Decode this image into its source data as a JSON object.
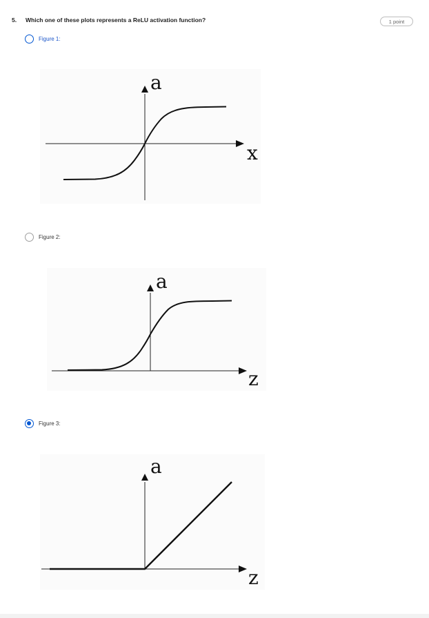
{
  "question": {
    "number": "5.",
    "text": "Which one of these plots represents a ReLU activation function?",
    "points": "1 point"
  },
  "options": [
    {
      "label": "Figure 1:",
      "selected": false,
      "figure": {
        "y_label": "a",
        "x_label": "x",
        "curve": "tanh"
      }
    },
    {
      "label": "Figure 2:",
      "selected": false,
      "figure": {
        "y_label": "a",
        "x_label": "z",
        "curve": "sigmoid"
      }
    },
    {
      "label": "Figure 3:",
      "selected": true,
      "figure": {
        "y_label": "a",
        "x_label": "z",
        "curve": "relu"
      }
    }
  ],
  "colors": {
    "accent": "#0056d2",
    "radio_border": "#9e9e9e",
    "link_text": "#1a55c9"
  }
}
